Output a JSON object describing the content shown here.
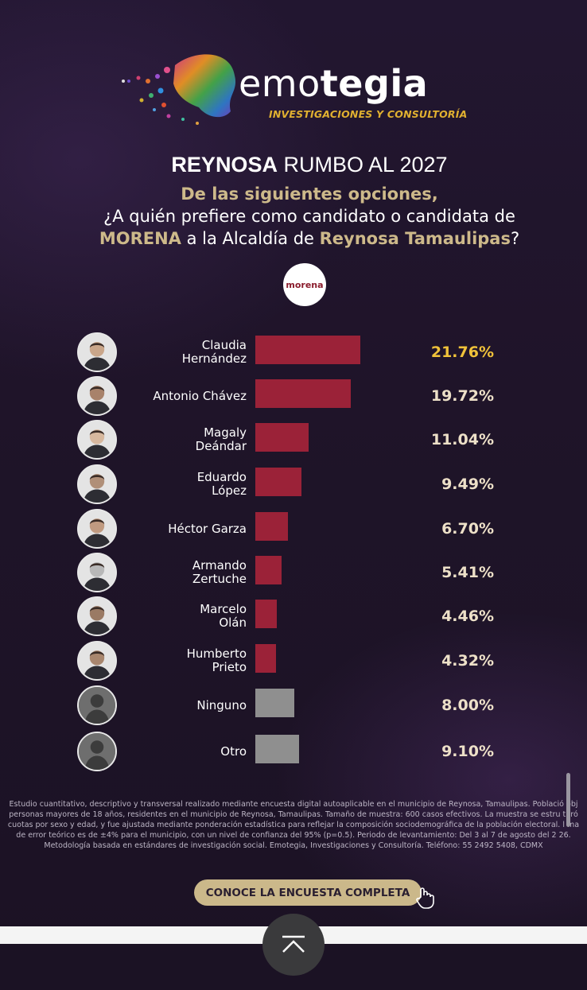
{
  "brand": {
    "name_light": "emo",
    "name_bold": "tegia",
    "tagline": "INVESTIGACIONES Y CONSULTORÍA"
  },
  "header": {
    "title_bold": "REYNOSA",
    "title_rest": " RUMBO AL 2027",
    "question_line1": "De las siguientes opciones,",
    "question_line2": "¿A quién prefiere como candidato o candidata de",
    "question_line3_bold1": "MORENA",
    "question_line3_mid": " a la Alcaldía de ",
    "question_line3_bold2": "Reynosa Tamaulipas",
    "question_line3_end": "?"
  },
  "party_badge": "morena",
  "chart_data": {
    "type": "bar",
    "orientation": "horizontal",
    "categories": [
      "Claudia\nHernández",
      "Antonio Chávez",
      "Magaly\nDeándar",
      "Eduardo\nLópez",
      "Héctor Garza",
      "Armando\nZertuche",
      "Marcelo\nOlán",
      "Humberto\nPrieto",
      "Ninguno",
      "Otro"
    ],
    "values": [
      21.76,
      19.72,
      11.04,
      9.49,
      6.7,
      5.41,
      4.46,
      4.32,
      8.0,
      9.1
    ],
    "labels": [
      "21.76%",
      "19.72%",
      "11.04%",
      "9.49%",
      "6.70%",
      "5.41%",
      "4.46%",
      "4.32%",
      "8.00%",
      "9.10%"
    ],
    "bar_colors": [
      "#9b2238",
      "#9b2238",
      "#9b2238",
      "#9b2238",
      "#9b2238",
      "#9b2238",
      "#9b2238",
      "#9b2238",
      "#8f8f8f",
      "#8f8f8f"
    ],
    "highlight_label_color": "#f0c23a",
    "label_color": "#ede0c8",
    "xlim": [
      0,
      22
    ]
  },
  "footnote": {
    "line1": "Estudio cuantitativo, descriptivo y transversal realizado mediante encuesta digital autoaplicable en el municipio de Reynosa, Tamaulipas. Població   obj",
    "line2": "personas mayores de 18 años, residentes en el municipio de Reynosa, Tamaulipas. Tamaño de muestra: 600 casos efectivos. La muestra se estru   turó",
    "line3": "cuotas por sexo y edad, y fue ajustada mediante ponderación estadística para reflejar la composición sociodemográfica de la población electoral.  l ma",
    "line4": "de error teórico es de ±4% para el municipio, con un nivel de confianza del 95% (p=0.5). Periodo de levantamiento: Del 3 al 7 de agosto del 2 26.",
    "line5": "Metodología basada en estándares de investigación social. Emotegia, Investigaciones y Consultoría. Teléfono: 55 2492 5408, CDMX"
  },
  "cta": {
    "label": "CONOCE LA ENCUESTA COMPLETA"
  },
  "icons": {
    "hand": "pointer-hand-icon",
    "up": "chevron-up-icon"
  }
}
